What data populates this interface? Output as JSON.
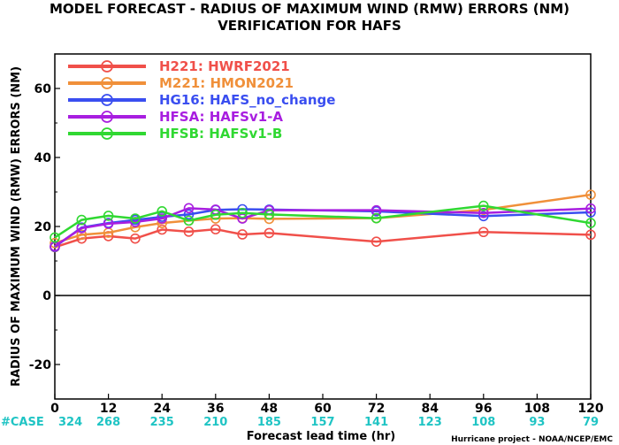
{
  "title": {
    "line1": "MODEL FORECAST - RADIUS OF MAXIMUM WIND (RMW) ERRORS (NM)",
    "line2": "VERIFICATION FOR HAFS"
  },
  "credit": "Hurricane project - NOAA/NCEP/EMC",
  "cases": {
    "label": "#CASE",
    "values": [
      "324",
      "268",
      "235",
      "210",
      "185",
      "157",
      "141",
      "123",
      "108",
      "93",
      "79"
    ]
  },
  "chart_data": {
    "type": "line",
    "title": "MODEL FORECAST - RADIUS OF MAXIMUM WIND (RMW) ERRORS (NM)",
    "subtitle": "VERIFICATION FOR HAFS",
    "xlabel": "Forecast lead time (hr)",
    "ylabel": "RADIUS OF MAXIMUM WIND (RMW) ERRORS (NM)",
    "xlim": [
      0,
      120
    ],
    "ylim": [
      -30,
      70
    ],
    "xticks": [
      0,
      12,
      24,
      36,
      48,
      60,
      72,
      84,
      96,
      108,
      120
    ],
    "yticks": [
      -20,
      0,
      20,
      40,
      60
    ],
    "ytick_labels": [
      "-20",
      "0",
      "20",
      "40",
      "60"
    ],
    "zero_line": true,
    "legend_position": "top-left",
    "series": [
      {
        "name": "H221: HWRF2021",
        "color": "#f0504a",
        "x": [
          0,
          6,
          12,
          18,
          24,
          30,
          36,
          42,
          48,
          72,
          96,
          120
        ],
        "y": [
          14,
          16.5,
          17.2,
          16.5,
          19.1,
          18.5,
          19.2,
          17.7,
          18.1,
          15.6,
          18.4,
          17.6
        ]
      },
      {
        "name": "M221: HMON2021",
        "color": "#f0903a",
        "x": [
          0,
          6,
          12,
          18,
          24,
          30,
          36,
          42,
          48,
          72,
          96,
          120
        ],
        "y": [
          15.2,
          17.6,
          18.2,
          19.8,
          21,
          21.7,
          22.3,
          22.4,
          22.2,
          22.4,
          24.8,
          29.2
        ]
      },
      {
        "name": "HG16: HAFS_no_change",
        "color": "#3a4ef0",
        "x": [
          0,
          6,
          12,
          18,
          24,
          30,
          36,
          42,
          48,
          72,
          96,
          120
        ],
        "y": [
          14.1,
          19.7,
          21,
          21.9,
          22.8,
          23.5,
          24.8,
          25,
          24.9,
          24.4,
          23,
          24.1
        ]
      },
      {
        "name": "HFSA: HAFSv1-A",
        "color": "#a81ee0",
        "x": [
          0,
          6,
          12,
          18,
          24,
          30,
          36,
          42,
          48,
          72,
          96,
          120
        ],
        "y": [
          14.3,
          19.5,
          20.8,
          21.3,
          22.3,
          25.3,
          24.9,
          22.3,
          24.7,
          24.7,
          23.9,
          25.2
        ]
      },
      {
        "name": "HFSB: HAFSv1-B",
        "color": "#30d832",
        "x": [
          0,
          6,
          12,
          18,
          24,
          30,
          36,
          42,
          48,
          72,
          96,
          120
        ],
        "y": [
          16.8,
          21.9,
          23.1,
          22.3,
          24.4,
          21.7,
          23.4,
          23.9,
          23.5,
          22.4,
          26,
          21
        ]
      }
    ]
  }
}
